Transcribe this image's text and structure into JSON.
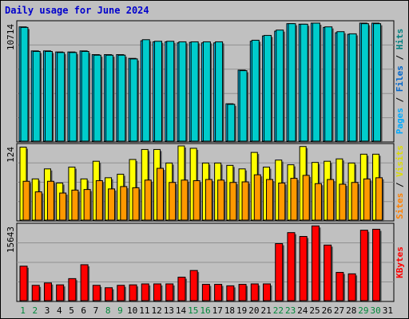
{
  "title": "Daily usage for June 2024",
  "colors": {
    "hits": "#00ccff",
    "files": "#00cccc",
    "pages": "#00aaff",
    "visits": "#ffff00",
    "sites": "#ff9900",
    "kbytes": "#ff0000",
    "day_weekday": "#000000",
    "day_weekend": "#00883a",
    "title": "#0000cc",
    "panel_bg": "#c0c0c0"
  },
  "right_labels": {
    "top": [
      {
        "text": "Pages",
        "color": "#00aaff"
      },
      {
        "text": " / ",
        "color": "#000000"
      },
      {
        "text": "Files",
        "color": "#0066cc"
      },
      {
        "text": " / ",
        "color": "#000000"
      },
      {
        "text": "Hits",
        "color": "#008080"
      }
    ],
    "mid": [
      {
        "text": "Sites",
        "color": "#ff8000"
      },
      {
        "text": " / ",
        "color": "#000000"
      },
      {
        "text": "Visits",
        "color": "#dddd00"
      }
    ],
    "bot": [
      {
        "text": "KBytes",
        "color": "#ff0000"
      }
    ]
  },
  "chart_data": [
    {
      "type": "bar",
      "ymax_label": "10714",
      "ymax": 10714,
      "series_note": "Hits and Files (overlapping)",
      "categories": [
        "1",
        "2",
        "3",
        "4",
        "5",
        "6",
        "7",
        "8",
        "9",
        "10",
        "11",
        "12",
        "13",
        "14",
        "15",
        "16",
        "17",
        "18",
        "19",
        "20",
        "21",
        "22",
        "23",
        "24",
        "25",
        "26",
        "27",
        "28",
        "29",
        "30",
        "31"
      ],
      "series": [
        {
          "name": "Hits",
          "values": [
            10700,
            8450,
            8450,
            8350,
            8350,
            8450,
            8100,
            8100,
            8100,
            7750,
            9400,
            9300,
            9300,
            9200,
            9250,
            9200,
            9200,
            3500,
            6650,
            9350,
            9850,
            10300,
            11000,
            10950,
            11050,
            10650,
            10150,
            10000,
            11050,
            11050,
            0
          ]
        },
        {
          "name": "Files",
          "values": [
            10650,
            8400,
            8400,
            8300,
            8300,
            8400,
            8050,
            8050,
            8050,
            7700,
            9500,
            9350,
            9350,
            9300,
            9300,
            9300,
            9300,
            3450,
            6600,
            9450,
            9900,
            10400,
            11000,
            10950,
            11050,
            10700,
            10250,
            10050,
            11000,
            11000,
            0
          ]
        }
      ]
    },
    {
      "type": "bar",
      "ymax_label": "124",
      "ymax": 124,
      "categories": [
        "1",
        "2",
        "3",
        "4",
        "5",
        "6",
        "7",
        "8",
        "9",
        "10",
        "11",
        "12",
        "13",
        "14",
        "15",
        "16",
        "17",
        "18",
        "19",
        "20",
        "21",
        "22",
        "23",
        "24",
        "25",
        "26",
        "27",
        "28",
        "29",
        "30",
        "31"
      ],
      "series": [
        {
          "name": "Visits",
          "values": [
            124,
            70,
            87,
            63,
            90,
            70,
            100,
            72,
            78,
            103,
            120,
            120,
            97,
            126,
            122,
            97,
            97,
            93,
            87,
            115,
            90,
            102,
            94,
            125,
            98,
            100,
            104,
            97,
            112,
            112,
            0
          ]
        },
        {
          "name": "Sites",
          "values": [
            66,
            48,
            66,
            46,
            51,
            52,
            67,
            53,
            57,
            55,
            68,
            88,
            64,
            68,
            67,
            69,
            68,
            64,
            65,
            77,
            69,
            63,
            71,
            76,
            62,
            69,
            61,
            64,
            70,
            72,
            0
          ]
        }
      ]
    },
    {
      "type": "bar",
      "ymax_label": "15643",
      "ymax": 15643,
      "categories": [
        "1",
        "2",
        "3",
        "4",
        "5",
        "6",
        "7",
        "8",
        "9",
        "10",
        "11",
        "12",
        "13",
        "14",
        "15",
        "16",
        "17",
        "18",
        "19",
        "20",
        "21",
        "22",
        "23",
        "24",
        "25",
        "26",
        "27",
        "28",
        "29",
        "30",
        "31"
      ],
      "series": [
        {
          "name": "KBytes",
          "values": [
            7200,
            3200,
            3700,
            3300,
            4600,
            7500,
            3200,
            2700,
            3200,
            3300,
            3500,
            3500,
            3500,
            4900,
            6300,
            3400,
            3400,
            3100,
            3400,
            3500,
            3500,
            11900,
            14200,
            13400,
            15600,
            11600,
            5900,
            5600,
            14700,
            14900,
            0
          ]
        }
      ]
    }
  ],
  "x_labels": [
    {
      "text": "1",
      "weekend": true
    },
    {
      "text": "2",
      "weekend": true
    },
    {
      "text": "3",
      "weekend": false
    },
    {
      "text": "4",
      "weekend": false
    },
    {
      "text": "5",
      "weekend": false
    },
    {
      "text": "6",
      "weekend": false
    },
    {
      "text": "7",
      "weekend": false
    },
    {
      "text": "8",
      "weekend": true
    },
    {
      "text": "9",
      "weekend": true
    },
    {
      "text": "10",
      "weekend": false
    },
    {
      "text": "11",
      "weekend": false
    },
    {
      "text": "12",
      "weekend": false
    },
    {
      "text": "13",
      "weekend": false
    },
    {
      "text": "14",
      "weekend": false
    },
    {
      "text": "15",
      "weekend": true
    },
    {
      "text": "16",
      "weekend": true
    },
    {
      "text": "17",
      "weekend": false
    },
    {
      "text": "18",
      "weekend": false
    },
    {
      "text": "19",
      "weekend": false
    },
    {
      "text": "20",
      "weekend": false
    },
    {
      "text": "21",
      "weekend": false
    },
    {
      "text": "22",
      "weekend": true
    },
    {
      "text": "23",
      "weekend": true
    },
    {
      "text": "24",
      "weekend": false
    },
    {
      "text": "25",
      "weekend": false
    },
    {
      "text": "26",
      "weekend": false
    },
    {
      "text": "27",
      "weekend": false
    },
    {
      "text": "28",
      "weekend": false
    },
    {
      "text": "29",
      "weekend": true
    },
    {
      "text": "30",
      "weekend": true
    },
    {
      "text": "31",
      "weekend": false
    }
  ]
}
